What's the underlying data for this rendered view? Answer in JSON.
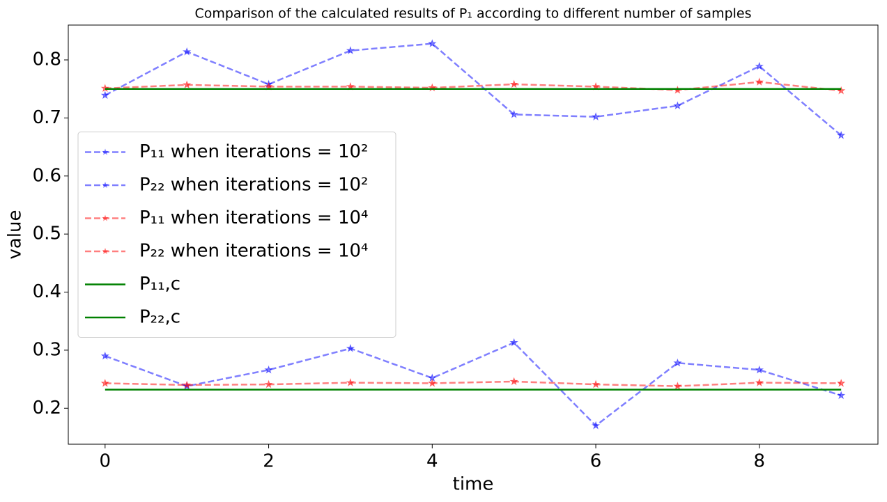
{
  "chart_data": {
    "type": "line",
    "title": "Comparison of the calculated results of P₁ according to different number of samples",
    "x_label": "time",
    "y_label": "value",
    "x": [
      0,
      1,
      2,
      3,
      4,
      5,
      6,
      7,
      8,
      9
    ],
    "series": [
      {
        "name": "P₁₁ when iterations = 10²",
        "color": "#0000ff",
        "dashed": true,
        "marker": "star",
        "values": [
          0.739,
          0.814,
          0.758,
          0.816,
          0.828,
          0.706,
          0.702,
          0.721,
          0.789,
          0.67
        ]
      },
      {
        "name": "P₂₂ when iterations = 10²",
        "color": "#0000ff",
        "dashed": true,
        "marker": "star",
        "values": [
          0.29,
          0.238,
          0.266,
          0.303,
          0.252,
          0.313,
          0.17,
          0.278,
          0.266,
          0.222
        ]
      },
      {
        "name": "P₁₁ when iterations = 10⁴",
        "color": "#ff0000",
        "dashed": true,
        "marker": "star",
        "values": [
          0.751,
          0.757,
          0.754,
          0.754,
          0.752,
          0.758,
          0.754,
          0.748,
          0.762,
          0.747
        ]
      },
      {
        "name": "P₂₂ when iterations = 10⁴",
        "color": "#ff0000",
        "dashed": true,
        "marker": "star",
        "values": [
          0.243,
          0.24,
          0.241,
          0.244,
          0.243,
          0.246,
          0.241,
          0.238,
          0.244,
          0.243
        ]
      },
      {
        "name": "P₁₁,c",
        "color": "#008000",
        "dashed": false,
        "values": [
          0.75,
          0.75,
          0.75,
          0.75,
          0.75,
          0.75,
          0.75,
          0.75,
          0.75,
          0.75
        ]
      },
      {
        "name": "P₂₂,c",
        "color": "#008000",
        "dashed": false,
        "values": [
          0.232,
          0.232,
          0.232,
          0.232,
          0.232,
          0.232,
          0.232,
          0.232,
          0.232,
          0.232
        ]
      }
    ],
    "xlim": [
      -0.45,
      9.45
    ],
    "xticks": [
      0,
      2,
      4,
      6,
      8
    ],
    "ylim": [
      0.138,
      0.86
    ],
    "yticks": [
      0.2,
      0.3,
      0.4,
      0.5,
      0.6,
      0.7,
      0.8
    ],
    "legend": "center left"
  }
}
